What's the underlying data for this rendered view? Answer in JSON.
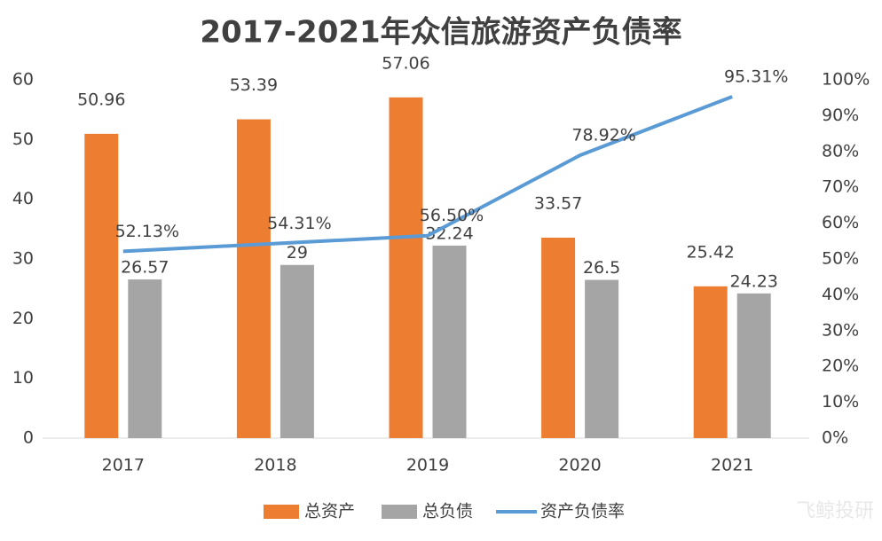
{
  "chart_data": {
    "type": "bar-line",
    "title": "2017-2021年众信旅游资产负债率",
    "categories": [
      "2017",
      "2018",
      "2019",
      "2020",
      "2021"
    ],
    "series": [
      {
        "name": "总资产",
        "type": "bar",
        "color": "#ed7d31",
        "values": [
          50.96,
          53.39,
          57.06,
          33.57,
          25.42
        ]
      },
      {
        "name": "总负债",
        "type": "bar",
        "color": "#a5a5a5",
        "values": [
          26.57,
          29,
          32.24,
          26.5,
          24.23
        ]
      },
      {
        "name": "资产负债率",
        "type": "line",
        "axis": "y2",
        "color": "#5b9bd5",
        "values": [
          52.13,
          54.31,
          56.5,
          78.92,
          95.31
        ],
        "value_labels": [
          "52.13%",
          "54.31%",
          "56.50%",
          "78.92%",
          "95.31%"
        ]
      }
    ],
    "ylim": [
      0,
      60
    ],
    "yticks": [
      0,
      10,
      20,
      30,
      40,
      50,
      60
    ],
    "y2lim": [
      0,
      100
    ],
    "y2ticks": [
      {
        "value": 0,
        "label": "0%"
      },
      {
        "value": 10,
        "label": "10%"
      },
      {
        "value": 20,
        "label": "20%"
      },
      {
        "value": 30,
        "label": "30%"
      },
      {
        "value": 40,
        "label": "40%"
      },
      {
        "value": 50,
        "label": "50%"
      },
      {
        "value": 60,
        "label": "60%"
      },
      {
        "value": 70,
        "label": "70%"
      },
      {
        "value": 80,
        "label": "80%"
      },
      {
        "value": 90,
        "label": "90%"
      },
      {
        "value": 100,
        "label": "100%"
      }
    ],
    "grid": false,
    "legend": "bottom",
    "watermark": "飞鲸投研"
  }
}
